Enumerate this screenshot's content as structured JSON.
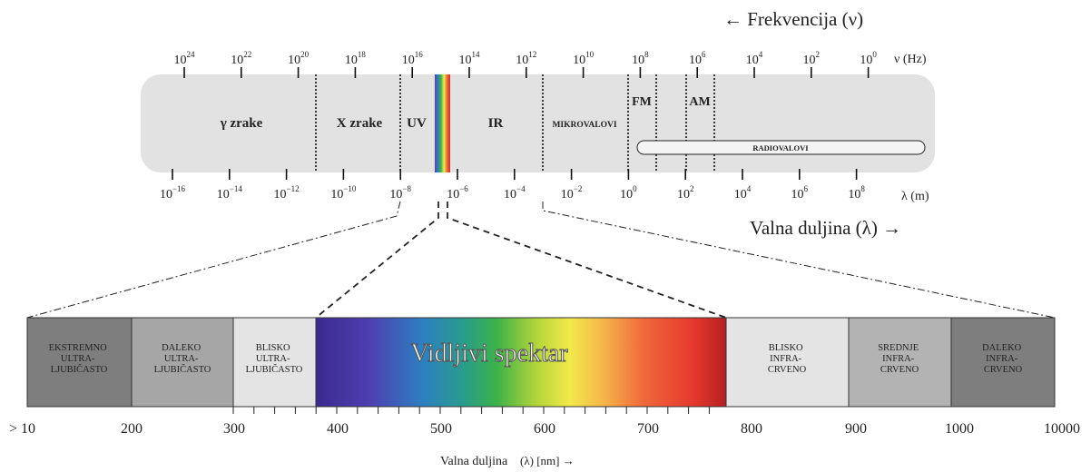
{
  "top": {
    "frequency_title": "← Frekvencija (ν)",
    "frequency_unit": "ν (Hz)",
    "wavelength_unit": "λ (m)",
    "wavelength_title": "Valna duljina (λ) →",
    "freq_ticks": [
      {
        "base": "10",
        "exp": "24"
      },
      {
        "base": "10",
        "exp": "22"
      },
      {
        "base": "10",
        "exp": "20"
      },
      {
        "base": "10",
        "exp": "18"
      },
      {
        "base": "10",
        "exp": "16"
      },
      {
        "base": "10",
        "exp": "14"
      },
      {
        "base": "10",
        "exp": "12"
      },
      {
        "base": "10",
        "exp": "10"
      },
      {
        "base": "10",
        "exp": "8"
      },
      {
        "base": "10",
        "exp": "6"
      },
      {
        "base": "10",
        "exp": "4"
      },
      {
        "base": "10",
        "exp": "2"
      },
      {
        "base": "10",
        "exp": "0"
      }
    ],
    "wave_ticks": [
      {
        "base": "10",
        "exp": "−16"
      },
      {
        "base": "10",
        "exp": "−14"
      },
      {
        "base": "10",
        "exp": "−12"
      },
      {
        "base": "10",
        "exp": "−10"
      },
      {
        "base": "10",
        "exp": "−8"
      },
      {
        "base": "10",
        "exp": "−6"
      },
      {
        "base": "10",
        "exp": "−4"
      },
      {
        "base": "10",
        "exp": "−2"
      },
      {
        "base": "10",
        "exp": "0"
      },
      {
        "base": "10",
        "exp": "2"
      },
      {
        "base": "10",
        "exp": "4"
      },
      {
        "base": "10",
        "exp": "6"
      },
      {
        "base": "10",
        "exp": "8"
      }
    ],
    "regions": {
      "gamma": "γ zrake",
      "xray": "X zrake",
      "uv": "UV",
      "ir": "IR",
      "micro": "MIKROVALOVI",
      "fm": "FM",
      "am": "AM",
      "radio": "RADIOVALOVI"
    }
  },
  "bottom": {
    "boxes": {
      "extreme_uv": [
        "EKSTREMNO",
        "ULTRA-",
        "LJUBIČASTO"
      ],
      "far_uv": [
        "DALEKO",
        "ULTRA-",
        "LJUBIČASTO"
      ],
      "near_uv": [
        "BLISKO",
        "ULTRA-",
        "LJUBIČASTO"
      ],
      "visible": "Vidljivi spektar",
      "near_ir": [
        "BLISKO",
        "INFRA-",
        "CRVENO"
      ],
      "mid_ir": [
        "SREDNJE",
        "INFRA-",
        "CRVENO"
      ],
      "far_ir": [
        "DALEKO",
        "INFRA-",
        "CRVENO"
      ]
    },
    "axis_labels": [
      "> 10",
      "200",
      "300",
      "400",
      "500",
      "600",
      "700",
      "800",
      "900",
      "1000",
      "10000"
    ],
    "axis_title": "Valna duljina",
    "axis_unit": "(λ) [nm] →"
  },
  "colors": {
    "band": "#e2e2e2",
    "extreme_uv": "#7e7e7e",
    "far_uv": "#a6a6a6",
    "near_uv": "#e4e4e4",
    "mid_ir": "#b3b3b3",
    "far_ir": "#7e7e7e"
  }
}
